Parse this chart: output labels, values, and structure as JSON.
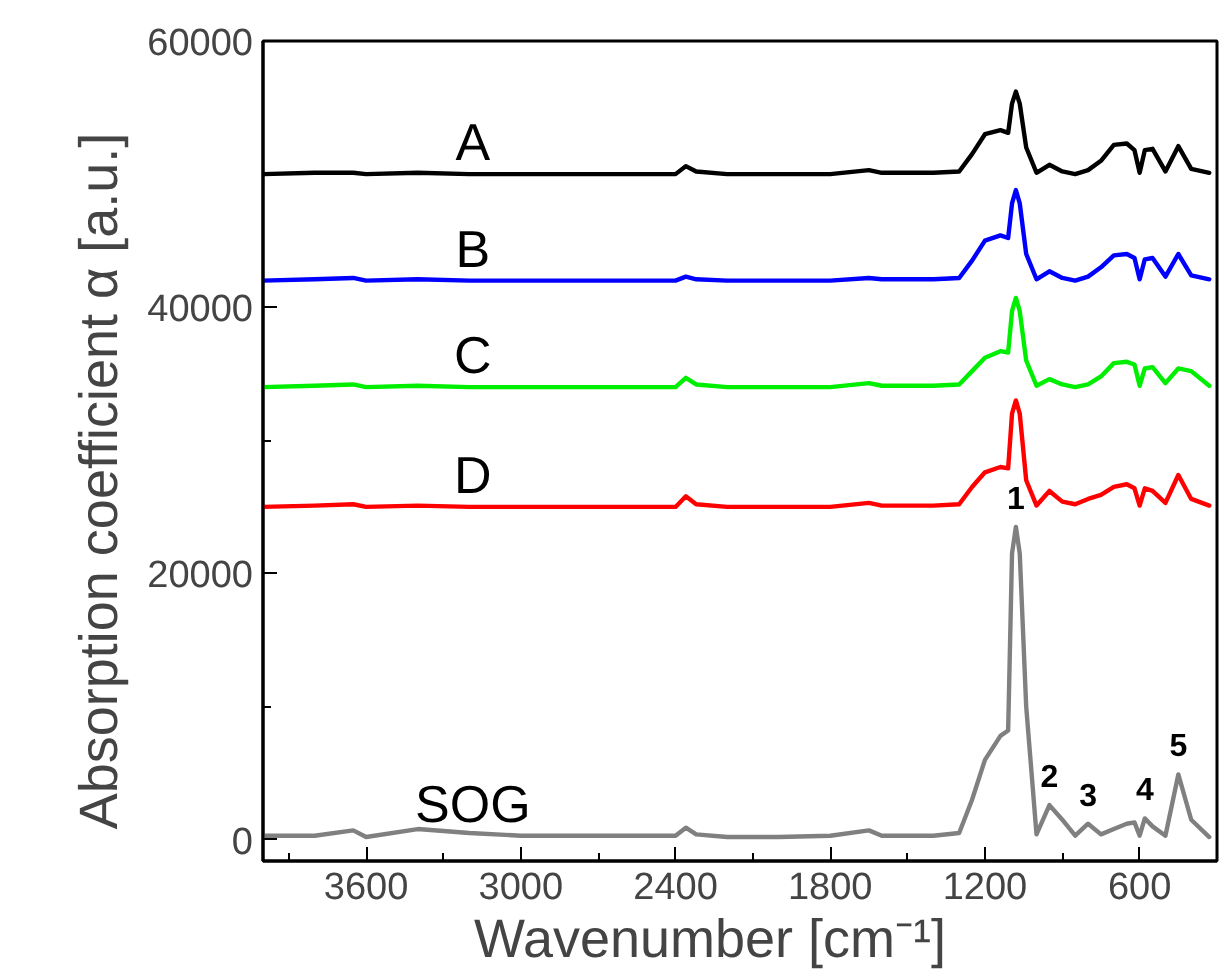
{
  "chart_data": {
    "type": "line",
    "xlabel": "Wavenumber     [cm⁻¹]",
    "ylabel": "Absorption coefficient  α    [a.u.]",
    "x": [
      4000,
      3800,
      3650,
      3600,
      3400,
      3200,
      3000,
      2800,
      2600,
      2400,
      2360,
      2320,
      2200,
      2000,
      1800,
      1650,
      1600,
      1500,
      1400,
      1300,
      1250,
      1200,
      1140,
      1110,
      1095,
      1080,
      1065,
      1040,
      1000,
      950,
      900,
      850,
      800,
      750,
      700,
      650,
      620,
      600,
      580,
      550,
      500,
      450,
      400,
      330
    ],
    "series": [
      {
        "name": "A",
        "color": "#000000",
        "values": [
          50000,
          50100,
          50100,
          50000,
          50100,
          50000,
          50000,
          50000,
          50000,
          50000,
          50600,
          50200,
          50000,
          50000,
          50000,
          50300,
          50100,
          50100,
          50100,
          50200,
          51500,
          53000,
          53300,
          53100,
          55300,
          56200,
          55300,
          52000,
          50100,
          50700,
          50200,
          50000,
          50300,
          51000,
          52200,
          52300,
          51800,
          50100,
          51800,
          51900,
          50200,
          52100,
          50400,
          50100
        ]
      },
      {
        "name": "B",
        "color": "#0000ff",
        "values": [
          42000,
          42100,
          42200,
          42000,
          42100,
          42000,
          42000,
          42000,
          42000,
          42000,
          42300,
          42100,
          42000,
          42000,
          42000,
          42200,
          42100,
          42100,
          42100,
          42200,
          43500,
          45000,
          45400,
          45200,
          47800,
          48800,
          47800,
          44000,
          42100,
          42700,
          42200,
          42000,
          42300,
          43000,
          43900,
          44000,
          43700,
          42100,
          43600,
          43700,
          42300,
          44000,
          42400,
          42100
        ]
      },
      {
        "name": "C",
        "color": "#00ee00",
        "values": [
          34000,
          34100,
          34200,
          34000,
          34100,
          34000,
          34000,
          34000,
          34000,
          34000,
          34700,
          34200,
          34000,
          34000,
          34000,
          34300,
          34100,
          34100,
          34100,
          34200,
          35200,
          36200,
          36700,
          36600,
          39700,
          40700,
          39700,
          36000,
          34100,
          34600,
          34200,
          34000,
          34200,
          34800,
          35800,
          35900,
          35700,
          34100,
          35400,
          35500,
          34300,
          35400,
          35200,
          34100
        ]
      },
      {
        "name": "D",
        "color": "#ff0000",
        "values": [
          25000,
          25100,
          25200,
          25000,
          25100,
          25000,
          25000,
          25000,
          25000,
          25000,
          25800,
          25200,
          25000,
          25000,
          25000,
          25300,
          25100,
          25100,
          25100,
          25200,
          26500,
          27600,
          28000,
          27900,
          32000,
          33000,
          32000,
          27000,
          25100,
          26200,
          25400,
          25200,
          25600,
          25900,
          26500,
          26700,
          26400,
          25100,
          26400,
          26200,
          25300,
          27400,
          25600,
          25100
        ]
      },
      {
        "name": "SOG",
        "color": "#808080",
        "values": [
          300,
          300,
          700,
          200,
          800,
          500,
          300,
          300,
          300,
          300,
          900,
          400,
          200,
          200,
          300,
          700,
          300,
          300,
          300,
          500,
          3000,
          6000,
          7800,
          8200,
          21500,
          23500,
          21500,
          10000,
          400,
          2600,
          1500,
          300,
          1200,
          400,
          800,
          1200,
          1300,
          300,
          1600,
          1000,
          300,
          4900,
          1500,
          200
        ]
      }
    ],
    "annotations": [
      {
        "text": "1",
        "x": 1080,
        "y": 23500
      },
      {
        "text": "2",
        "x": 950,
        "y": 2600
      },
      {
        "text": "3",
        "x": 800,
        "y": 1200
      },
      {
        "text": "4",
        "x": 580,
        "y": 1600
      },
      {
        "text": "5",
        "x": 450,
        "y": 4900
      }
    ],
    "xlim": [
      4000,
      300
    ],
    "xticks": [
      {
        "value": 3900,
        "label": null
      },
      3600,
      {
        "value": 3300,
        "label": null
      },
      3000,
      {
        "value": 2700,
        "label": null
      },
      2400,
      {
        "value": 2100,
        "label": null
      },
      1800,
      {
        "value": 1500,
        "label": null
      },
      1200,
      {
        "value": 900,
        "label": null
      },
      600
    ],
    "ylim": [
      -1600,
      60000
    ],
    "yticks": [
      0,
      {
        "value": 10000,
        "label": null
      },
      20000,
      {
        "value": 30000,
        "label": null
      },
      40000,
      {
        "value": 50000,
        "label": null
      },
      60000
    ],
    "grid": false,
    "marker": "none",
    "line_style": "solid"
  }
}
